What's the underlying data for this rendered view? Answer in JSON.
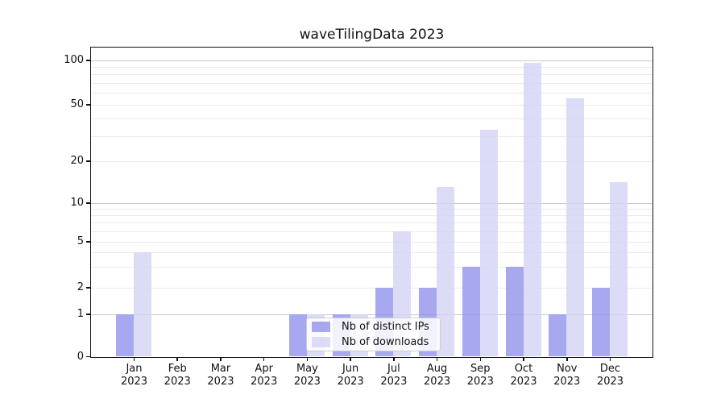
{
  "figure": {
    "title": "waveTilingData 2023",
    "background_color": "#ffffff",
    "spine_color": "#111111",
    "major_grid_color": "#c9c9c9",
    "minor_grid_color": "#ebebeb"
  },
  "chart_data": {
    "type": "bar",
    "title": "waveTilingData 2023",
    "xlabel": "",
    "ylabel": "",
    "yscale": "symlog",
    "ylim": [
      0,
      130
    ],
    "grid": "on",
    "legend_position": "lower-center",
    "categories": [
      "Jan",
      "Feb",
      "Mar",
      "Apr",
      "May",
      "Jun",
      "Jul",
      "Aug",
      "Sep",
      "Oct",
      "Nov",
      "Dec"
    ],
    "category_year": "2023",
    "series": [
      {
        "name": "Nb of distinct IPs",
        "color": "#9292ee",
        "values": [
          1,
          0,
          0,
          0,
          1,
          1,
          2,
          2,
          3,
          3,
          1,
          2
        ]
      },
      {
        "name": "Nb of downloads",
        "color": "#d3d3f5",
        "values": [
          4,
          0,
          0,
          0,
          1,
          1,
          6,
          13,
          33,
          96,
          55,
          14
        ]
      }
    ],
    "yticks": [
      {
        "value": 0,
        "label": "0"
      },
      {
        "value": 1,
        "label": "1"
      },
      {
        "value": 2,
        "label": "2"
      },
      {
        "value": 5,
        "label": "5"
      },
      {
        "value": 10,
        "label": "10"
      },
      {
        "value": 20,
        "label": "20"
      },
      {
        "value": 50,
        "label": "50"
      },
      {
        "value": 100,
        "label": "100"
      }
    ],
    "major_grid_values": [
      1,
      10,
      100
    ],
    "minor_grid_values": [
      2,
      3,
      4,
      5,
      6,
      7,
      8,
      9,
      20,
      30,
      40,
      50,
      60,
      70,
      80,
      90
    ]
  }
}
